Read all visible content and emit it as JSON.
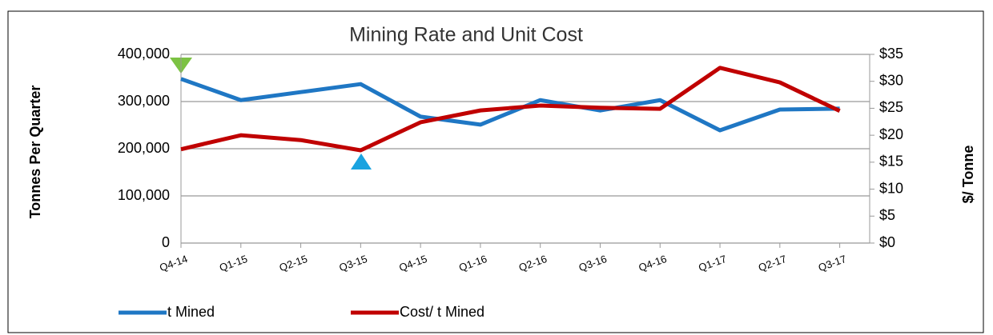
{
  "chart_data": {
    "type": "line",
    "title": "Mining Rate and Unit Cost",
    "y_label": "Tonnes Per Quarter",
    "y2_label": "$/ Tonne",
    "categories": [
      "Q4-14",
      "Q1-15",
      "Q2-15",
      "Q3-15",
      "Q4-15",
      "Q1-16",
      "Q2-16",
      "Q3-16",
      "Q4-16",
      "Q1-17",
      "Q2-17",
      "Q3-17"
    ],
    "series": [
      {
        "name": "t Mined",
        "color": "#1f77c4",
        "values": [
          348000,
          303000,
          320000,
          337000,
          268000,
          251000,
          303000,
          281000,
          303000,
          239000,
          283000,
          285000
        ]
      },
      {
        "name": "Cost/ t Mined",
        "color": "#c00000",
        "axis": "y2",
        "values": [
          17.4,
          20.0,
          19.1,
          17.2,
          22.4,
          24.6,
          25.5,
          25.1,
          24.9,
          32.5,
          29.8,
          24.5
        ]
      }
    ],
    "ylim": [
      0,
      400000
    ],
    "yticks": [
      0,
      {
        "value": 100000,
        "label": "100,000"
      },
      {
        "value": 200000,
        "label": "200,000"
      },
      {
        "value": 300000,
        "label": "300,000"
      },
      {
        "value": 400000,
        "label": "400,000"
      }
    ],
    "y2lim": [
      0,
      35
    ],
    "y2ticks": [
      {
        "value": 0,
        "label": "$0"
      },
      {
        "value": 5,
        "label": "$5"
      },
      {
        "value": 10,
        "label": "$10"
      },
      {
        "value": 15,
        "label": "$15"
      },
      {
        "value": 20,
        "label": "$20"
      },
      {
        "value": 25,
        "label": "$25"
      },
      {
        "value": 30,
        "label": "$30"
      },
      {
        "value": 35,
        "label": "$35"
      }
    ],
    "grid": true,
    "legend": "bottom"
  }
}
